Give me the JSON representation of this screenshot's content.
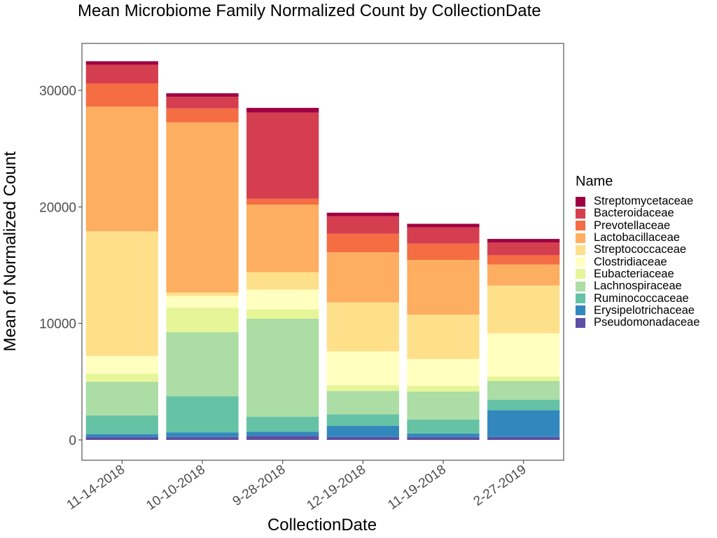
{
  "chart_data": {
    "type": "bar",
    "stacked": true,
    "title": "Mean Microbiome Family Normalized Count by CollectionDate",
    "xlabel": "CollectionDate",
    "ylabel": "Mean of Normalized Count",
    "ylim": [
      -1700,
      34000
    ],
    "yticks": [
      0,
      10000,
      20000,
      30000
    ],
    "categories": [
      "11-14-2018",
      "10-10-2018",
      "9-28-2018",
      "12-19-2018",
      "11-19-2018",
      "2-27-2019"
    ],
    "legend_title": "Name",
    "legend_position": "right",
    "grid": false,
    "series": [
      {
        "name": "Pseudomonadaceae",
        "color": "#5E4FA2",
        "values": [
          250,
          250,
          350,
          250,
          250,
          250
        ]
      },
      {
        "name": "Erysipelotrichaceae",
        "color": "#3288BD",
        "values": [
          250,
          400,
          350,
          950,
          300,
          2300
        ]
      },
      {
        "name": "Ruminococcaceae",
        "color": "#66C2A5",
        "values": [
          1600,
          3100,
          1300,
          1000,
          1200,
          900
        ]
      },
      {
        "name": "Lachnospiraceae",
        "color": "#ABDDA4",
        "values": [
          2900,
          5500,
          8400,
          2000,
          2400,
          1600
        ]
      },
      {
        "name": "Eubacteriaceae",
        "color": "#E6F598",
        "values": [
          700,
          2100,
          800,
          500,
          500,
          400
        ]
      },
      {
        "name": "Clostridiaceae",
        "color": "#FFFFBF",
        "values": [
          1500,
          1000,
          1700,
          2900,
          2300,
          3700
        ]
      },
      {
        "name": "Streptococcaceae",
        "color": "#FEE08B",
        "values": [
          10700,
          300,
          1500,
          4200,
          3800,
          4100
        ]
      },
      {
        "name": "Lactobacillaceae",
        "color": "#FDAE61",
        "values": [
          10700,
          14600,
          5800,
          4300,
          4700,
          1800
        ]
      },
      {
        "name": "Prevotellaceae",
        "color": "#F46D43",
        "values": [
          2000,
          1200,
          500,
          1600,
          1400,
          800
        ]
      },
      {
        "name": "Bacteroidaceae",
        "color": "#D53E4F",
        "values": [
          1600,
          1000,
          7400,
          1500,
          1400,
          1100
        ]
      },
      {
        "name": "Streptomycetaceae",
        "color": "#9E0142",
        "values": [
          300,
          300,
          400,
          300,
          300,
          300
        ]
      }
    ]
  }
}
